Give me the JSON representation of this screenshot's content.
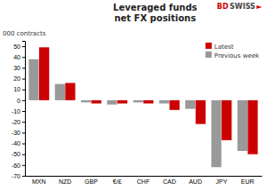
{
  "chart_data": {
    "type": "bar",
    "title": "Leveraged funds",
    "subtitle": "net FX positions",
    "ylabel": "000 contracts",
    "categories": [
      "MXN",
      "NZD",
      "GBP",
      "€/£",
      "CHF",
      "CAD",
      "AUD",
      "JPY",
      "EUR"
    ],
    "series": [
      {
        "name": "Previous week",
        "color": "#999999",
        "values": [
          38,
          15,
          -2,
          -4,
          -2,
          -3,
          -8,
          -62,
          -47
        ]
      },
      {
        "name": "Latest",
        "color": "#cc0000",
        "values": [
          49,
          16,
          -3,
          -3,
          -3,
          -9,
          -22,
          -37,
          -50
        ]
      }
    ],
    "ylim": [
      -70,
      55
    ],
    "yticks": [
      -70,
      -60,
      -50,
      -40,
      -30,
      -20,
      -10,
      0,
      10,
      20,
      30,
      40,
      50
    ],
    "grid": false,
    "legend": "upper right",
    "annotations": [
      {
        "text": "BD",
        "color": "#cc0000"
      },
      {
        "text": "SWISS",
        "color": "#444444"
      },
      {
        "text": "►",
        "color": "#cc0000"
      }
    ]
  }
}
